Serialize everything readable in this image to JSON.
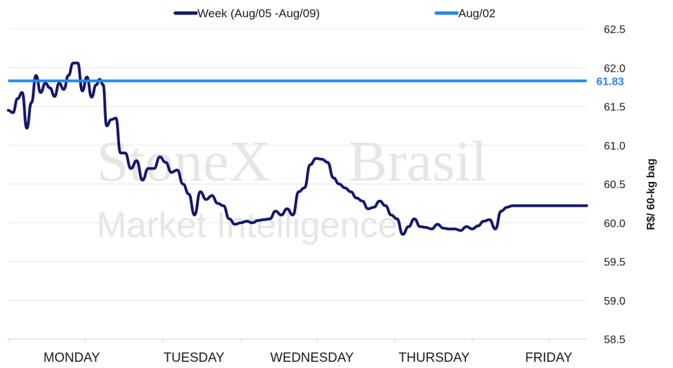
{
  "watermark": {
    "brand": "StoneX",
    "brand_suffix": "Brasil",
    "tagline": "Market Intelligence"
  },
  "chart_data": {
    "type": "line",
    "title": "",
    "xlabel": "",
    "ylabel": "R$/ 60-kg bag",
    "ylim": [
      58.5,
      62.5
    ],
    "yticks": [
      58.5,
      59.0,
      59.5,
      60.0,
      60.5,
      61.0,
      61.5,
      62.0,
      62.5
    ],
    "xlim": [
      0,
      100
    ],
    "categories": [
      "MONDAY",
      "TUESDAY",
      "WEDNESDAY",
      "THURSDAY",
      "FRIDAY"
    ],
    "grid": true,
    "legend": "top-center",
    "series": [
      {
        "name": "Week (Aug/05 -Aug/09)",
        "color": "#14186b",
        "x": [
          0,
          0.8,
          1.6,
          2.4,
          3.2,
          4.0,
          4.8,
          5.6,
          6.4,
          7.2,
          8.0,
          8.8,
          9.6,
          10.4,
          11.2,
          12.0,
          12.8,
          13.6,
          14.4,
          15.2,
          15.8,
          16.4,
          17.0,
          17.8,
          18.6,
          19.4,
          20.2,
          21.2,
          22.2,
          23.2,
          24.2,
          25.2,
          26.2,
          27.2,
          28.2,
          29.2,
          30.2,
          31.2,
          32.2,
          33.2,
          34.2,
          35.2,
          36.2,
          37.2,
          38.2,
          39.2,
          40.2,
          41.2,
          42.2,
          43.2,
          44.2,
          45.2,
          46.2,
          47.2,
          48.2,
          49.2,
          50.2,
          51.2,
          52.2,
          53.2,
          54.2,
          55.2,
          56.2,
          57.2,
          58.2,
          59.2,
          60.2,
          61.2,
          62.2,
          63.2,
          64.2,
          65.2,
          66.2,
          67.2,
          68.2,
          69.2,
          70.2,
          71.2,
          72.2,
          73.2,
          74.2,
          75.2,
          76.2,
          77.2,
          78.2,
          79.2,
          80.2,
          81.2,
          82.2,
          83.2,
          84.2,
          85.2,
          86.2,
          87.2,
          88.2,
          89.2,
          90.2,
          91.2,
          92.2,
          93.2,
          94.2,
          95.2,
          96.2,
          97.2,
          98.2,
          99.2,
          100
        ],
        "y": [
          61.45,
          61.42,
          61.6,
          61.68,
          61.22,
          61.55,
          61.9,
          61.68,
          61.8,
          61.74,
          61.63,
          61.8,
          61.72,
          61.9,
          62.06,
          62.06,
          61.7,
          61.88,
          61.62,
          61.78,
          61.85,
          61.78,
          61.25,
          61.33,
          61.35,
          60.9,
          60.9,
          60.7,
          60.8,
          60.55,
          60.7,
          60.7,
          60.85,
          60.78,
          60.65,
          60.68,
          60.5,
          60.37,
          60.1,
          60.4,
          60.3,
          60.35,
          60.25,
          60.22,
          60.05,
          59.98,
          60.0,
          60.02,
          60.0,
          60.03,
          60.04,
          60.05,
          60.15,
          60.1,
          60.18,
          60.1,
          60.4,
          60.45,
          60.75,
          60.83,
          60.82,
          60.78,
          60.58,
          60.5,
          60.45,
          60.4,
          60.32,
          60.28,
          60.18,
          60.2,
          60.28,
          60.22,
          60.1,
          60.05,
          59.85,
          59.95,
          60.05,
          59.95,
          59.94,
          59.92,
          59.98,
          59.93,
          59.92,
          59.92,
          59.9,
          59.95,
          59.92,
          59.96,
          60.02,
          60.04,
          59.92,
          60.15,
          60.2,
          60.22,
          60.22,
          60.22,
          60.22,
          60.22,
          60.22,
          60.22,
          60.22,
          60.22,
          60.22,
          60.22,
          60.22,
          60.22,
          60.22
        ]
      },
      {
        "name": "Aug/02",
        "color": "#2a86e8",
        "type": "reference",
        "value": 61.83,
        "label": "61.83"
      }
    ]
  }
}
